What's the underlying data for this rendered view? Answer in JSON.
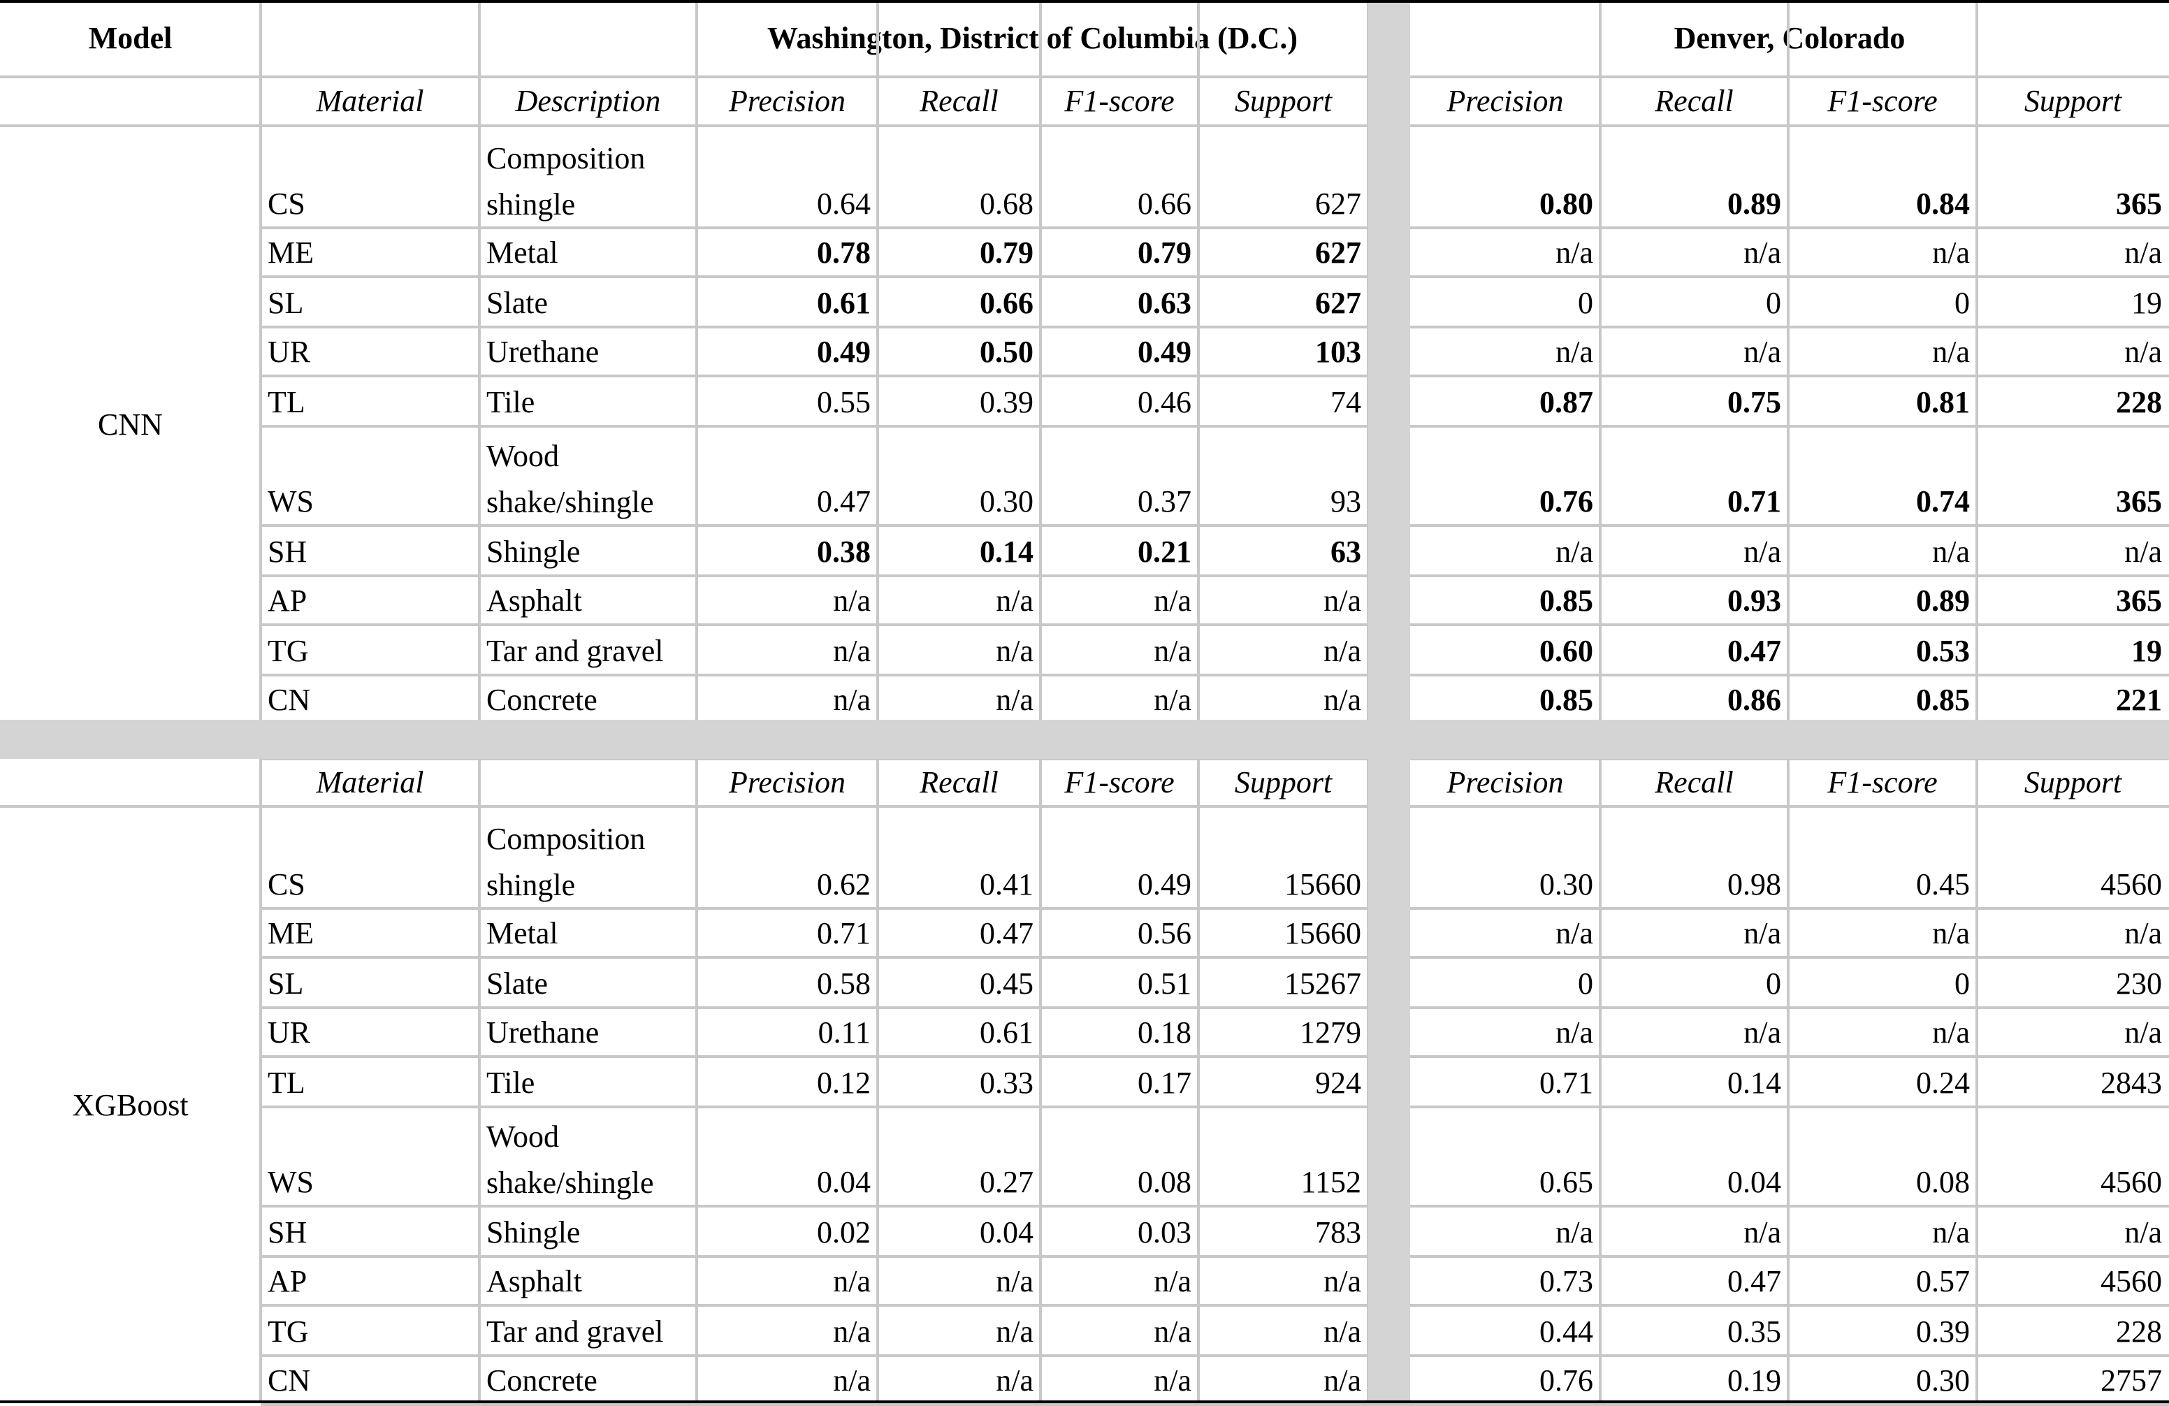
{
  "header": {
    "model": "Model",
    "washington": "Washington, District of Columbia (D.C.)",
    "denver": "Denver,  Colorado"
  },
  "columns": {
    "material": "Material",
    "description": "Description",
    "precision": "Precision",
    "recall": "Recall",
    "f1": "F1-score",
    "support": "Support"
  },
  "sections": [
    {
      "model": "CNN",
      "show_description_header": true,
      "rows": [
        {
          "code": "CS",
          "desc": "Composition shingle",
          "dc": [
            "0.64",
            "0.68",
            "0.66",
            "627"
          ],
          "dc_bold": false,
          "den": [
            "0.80",
            "0.89",
            "0.84",
            "365"
          ],
          "den_bold": true
        },
        {
          "code": "ME",
          "desc": "Metal",
          "dc": [
            "0.78",
            "0.79",
            "0.79",
            "627"
          ],
          "dc_bold": true,
          "den": [
            "n/a",
            "n/a",
            "n/a",
            "n/a"
          ],
          "den_bold": false
        },
        {
          "code": "SL",
          "desc": "Slate",
          "dc": [
            "0.61",
            "0.66",
            "0.63",
            "627"
          ],
          "dc_bold": true,
          "den": [
            "0",
            "0",
            "0",
            "19"
          ],
          "den_bold": false
        },
        {
          "code": "UR",
          "desc": "Urethane",
          "dc": [
            "0.49",
            "0.50",
            "0.49",
            "103"
          ],
          "dc_bold": true,
          "den": [
            "n/a",
            "n/a",
            "n/a",
            "n/a"
          ],
          "den_bold": false
        },
        {
          "code": "TL",
          "desc": "Tile",
          "dc": [
            "0.55",
            "0.39",
            "0.46",
            "74"
          ],
          "dc_bold": false,
          "den": [
            "0.87",
            "0.75",
            "0.81",
            "228"
          ],
          "den_bold": true
        },
        {
          "code": "WS",
          "desc": "Wood shake/shingle",
          "dc": [
            "0.47",
            "0.30",
            "0.37",
            "93"
          ],
          "dc_bold": false,
          "den": [
            "0.76",
            "0.71",
            "0.74",
            "365"
          ],
          "den_bold": true
        },
        {
          "code": "SH",
          "desc": "Shingle",
          "dc": [
            "0.38",
            "0.14",
            "0.21",
            "63"
          ],
          "dc_bold": true,
          "den": [
            "n/a",
            "n/a",
            "n/a",
            "n/a"
          ],
          "den_bold": false
        },
        {
          "code": "AP",
          "desc": "Asphalt",
          "dc": [
            "n/a",
            "n/a",
            "n/a",
            "n/a"
          ],
          "dc_bold": false,
          "den": [
            "0.85",
            "0.93",
            "0.89",
            "365"
          ],
          "den_bold": true
        },
        {
          "code": "TG",
          "desc": "Tar and gravel",
          "dc": [
            "n/a",
            "n/a",
            "n/a",
            "n/a"
          ],
          "dc_bold": false,
          "den": [
            "0.60",
            "0.47",
            "0.53",
            "19"
          ],
          "den_bold": true
        },
        {
          "code": "CN",
          "desc": "Concrete",
          "dc": [
            "n/a",
            "n/a",
            "n/a",
            "n/a"
          ],
          "dc_bold": false,
          "den": [
            "0.85",
            "0.86",
            "0.85",
            "221"
          ],
          "den_bold": true
        }
      ]
    },
    {
      "model": "XGBoost",
      "show_description_header": false,
      "rows": [
        {
          "code": "CS",
          "desc": "Composition shingle",
          "dc": [
            "0.62",
            "0.41",
            "0.49",
            "15660"
          ],
          "dc_bold": false,
          "den": [
            "0.30",
            "0.98",
            "0.45",
            "4560"
          ],
          "den_bold": false
        },
        {
          "code": "ME",
          "desc": "Metal",
          "dc": [
            "0.71",
            "0.47",
            "0.56",
            "15660"
          ],
          "dc_bold": false,
          "den": [
            "n/a",
            "n/a",
            "n/a",
            "n/a"
          ],
          "den_bold": false
        },
        {
          "code": "SL",
          "desc": "Slate",
          "dc": [
            "0.58",
            "0.45",
            "0.51",
            "15267"
          ],
          "dc_bold": false,
          "den": [
            "0",
            "0",
            "0",
            "230"
          ],
          "den_bold": false
        },
        {
          "code": "UR",
          "desc": "Urethane",
          "dc": [
            "0.11",
            "0.61",
            "0.18",
            "1279"
          ],
          "dc_bold": false,
          "den": [
            "n/a",
            "n/a",
            "n/a",
            "n/a"
          ],
          "den_bold": false
        },
        {
          "code": "TL",
          "desc": "Tile",
          "dc": [
            "0.12",
            "0.33",
            "0.17",
            "924"
          ],
          "dc_bold": false,
          "den": [
            "0.71",
            "0.14",
            "0.24",
            "2843"
          ],
          "den_bold": false
        },
        {
          "code": "WS",
          "desc": "Wood shake/shingle",
          "dc": [
            "0.04",
            "0.27",
            "0.08",
            "1152"
          ],
          "dc_bold": false,
          "den": [
            "0.65",
            "0.04",
            "0.08",
            "4560"
          ],
          "den_bold": false
        },
        {
          "code": "SH",
          "desc": "Shingle",
          "dc": [
            "0.02",
            "0.04",
            "0.03",
            "783"
          ],
          "dc_bold": false,
          "den": [
            "n/a",
            "n/a",
            "n/a",
            "n/a"
          ],
          "den_bold": false
        },
        {
          "code": "AP",
          "desc": "Asphalt",
          "dc": [
            "n/a",
            "n/a",
            "n/a",
            "n/a"
          ],
          "dc_bold": false,
          "den": [
            "0.73",
            "0.47",
            "0.57",
            "4560"
          ],
          "den_bold": false
        },
        {
          "code": "TG",
          "desc": "Tar and gravel",
          "dc": [
            "n/a",
            "n/a",
            "n/a",
            "n/a"
          ],
          "dc_bold": false,
          "den": [
            "0.44",
            "0.35",
            "0.39",
            "228"
          ],
          "den_bold": false
        },
        {
          "code": "CN",
          "desc": "Concrete",
          "dc": [
            "n/a",
            "n/a",
            "n/a",
            "n/a"
          ],
          "dc_bold": false,
          "den": [
            "0.76",
            "0.19",
            "0.30",
            "2757"
          ],
          "den_bold": false
        }
      ]
    }
  ]
}
